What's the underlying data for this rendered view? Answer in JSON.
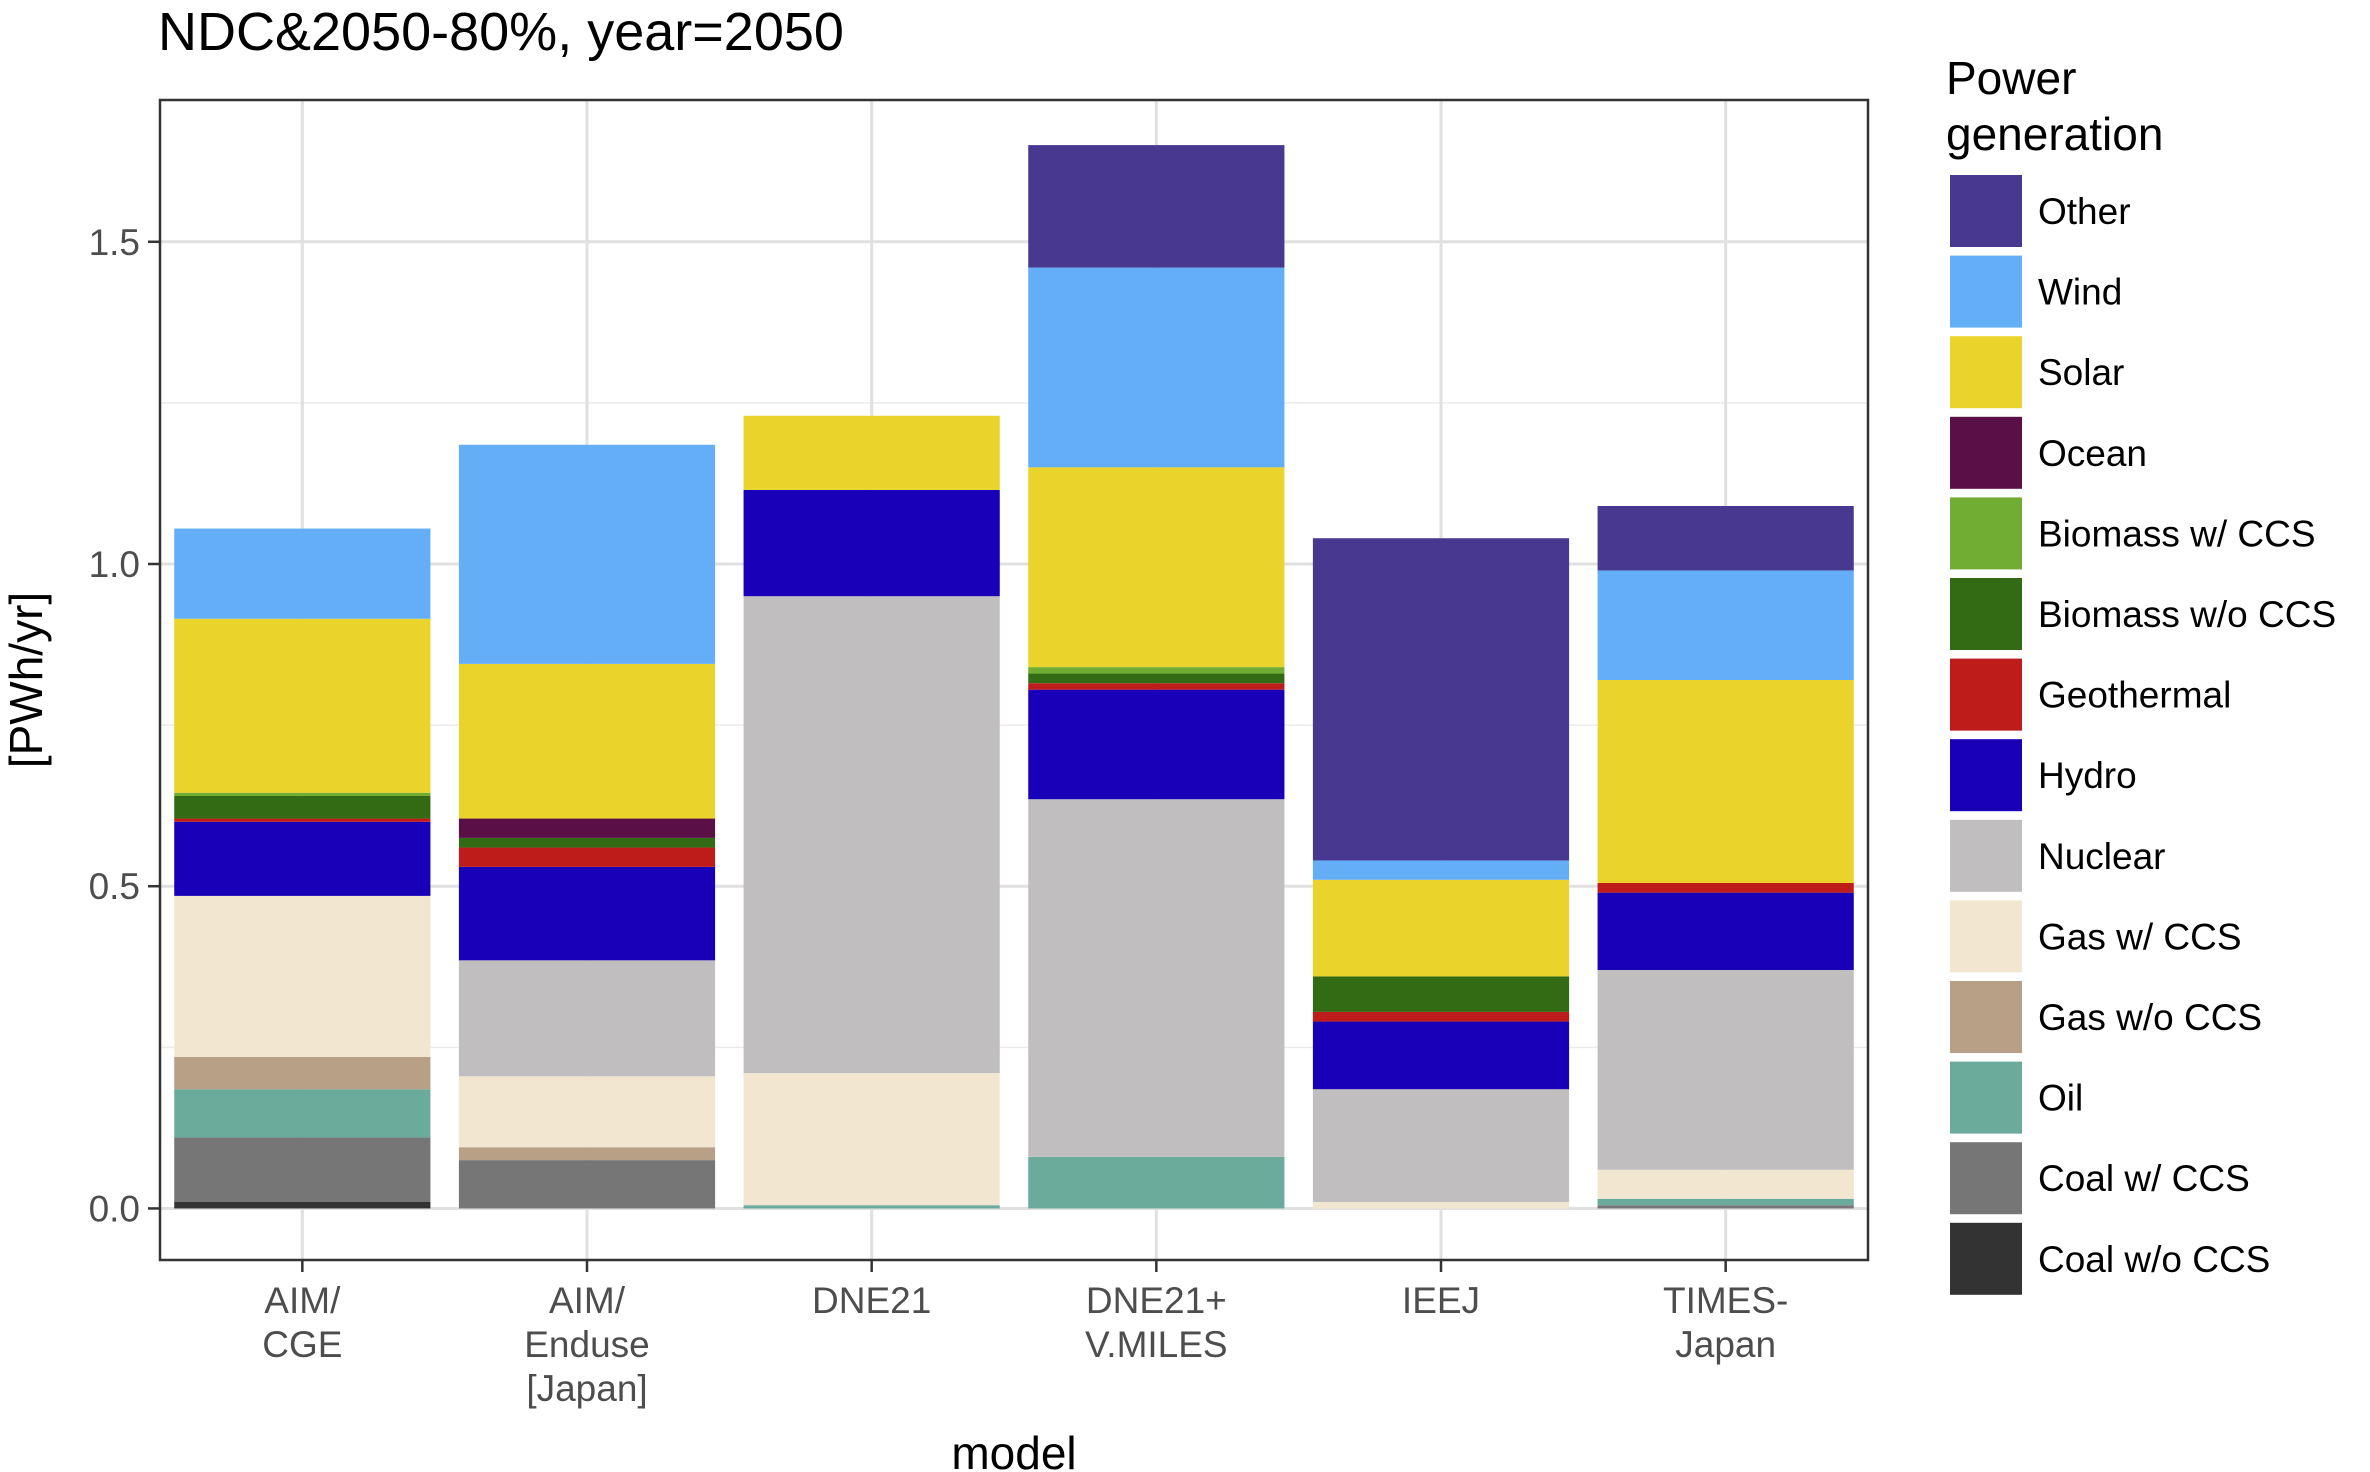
{
  "chart_data": {
    "type": "bar",
    "stacked": true,
    "title": "NDC&2050-80%, year=2050",
    "xlabel": "model",
    "ylabel": "[PWh/yr]",
    "ylim": [
      -0.08,
      1.72
    ],
    "yticks": [
      "0.0",
      "0.5",
      "1.0",
      "1.5"
    ],
    "ytick_values": [
      0,
      0.5,
      1.0,
      1.5
    ],
    "grid": true,
    "legend_title": [
      "Power",
      "generation"
    ],
    "legend_position": "right",
    "categories": [
      [
        "AIM/",
        "CGE"
      ],
      [
        "AIM/",
        "Enduse",
        "[Japan]"
      ],
      [
        "DNE21"
      ],
      [
        "DNE21+",
        "V.MILES"
      ],
      [
        "IEEJ"
      ],
      [
        "TIMES-",
        "Japan"
      ]
    ],
    "series": [
      {
        "name": "Coal w/o CCS",
        "color": "#333333",
        "values": [
          0.01,
          0.0,
          0.0,
          0.0,
          0.0,
          0.0
        ]
      },
      {
        "name": "Coal w/ CCS",
        "color": "#767676",
        "values": [
          0.1,
          0.075,
          0.0,
          0.0,
          0.0,
          0.005
        ]
      },
      {
        "name": "Oil",
        "color": "#6AAB9C",
        "values": [
          0.075,
          0.0,
          0.005,
          0.08,
          0.0,
          0.01
        ]
      },
      {
        "name": "Gas w/o CCS",
        "color": "#B8A086",
        "values": [
          0.05,
          0.02,
          0.0,
          0.0,
          0.0,
          0.0
        ]
      },
      {
        "name": "Gas w/ CCS",
        "color": "#F2E6D0",
        "values": [
          0.25,
          0.11,
          0.205,
          0.0,
          0.01,
          0.045
        ]
      },
      {
        "name": "Nuclear",
        "color": "#C1BEBF",
        "values": [
          0.0,
          0.18,
          0.74,
          0.555,
          0.175,
          0.31
        ]
      },
      {
        "name": "Hydro",
        "color": "#1900B8",
        "values": [
          0.115,
          0.145,
          0.165,
          0.17,
          0.105,
          0.12
        ]
      },
      {
        "name": "Geothermal",
        "color": "#BE1B1B",
        "values": [
          0.005,
          0.03,
          0.0,
          0.01,
          0.015,
          0.015
        ]
      },
      {
        "name": "Biomass w/o CCS",
        "color": "#336B15",
        "values": [
          0.035,
          0.015,
          0.0,
          0.015,
          0.055,
          0.0
        ]
      },
      {
        "name": "Biomass w/ CCS",
        "color": "#70AD32",
        "values": [
          0.005,
          0.0,
          0.0,
          0.01,
          0.0,
          0.0
        ]
      },
      {
        "name": "Ocean",
        "color": "#5A0F46",
        "values": [
          0.0,
          0.03,
          0.0,
          0.0,
          0.0,
          0.0
        ]
      },
      {
        "name": "Solar",
        "color": "#EAD32A",
        "values": [
          0.27,
          0.24,
          0.115,
          0.31,
          0.15,
          0.315
        ]
      },
      {
        "name": "Wind",
        "color": "#64AEF8",
        "values": [
          0.14,
          0.34,
          0.0,
          0.31,
          0.03,
          0.17
        ]
      },
      {
        "name": "Other",
        "color": "#483890",
        "values": [
          0.0,
          0.0,
          0.0,
          0.19,
          0.5,
          0.1
        ]
      }
    ]
  }
}
